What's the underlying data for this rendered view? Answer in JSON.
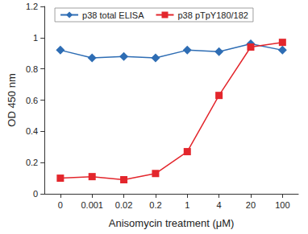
{
  "chart_data": {
    "type": "line",
    "x_label": "Anisomycin treatment (μM)",
    "y_label": "OD 450 nm",
    "categories": [
      "0",
      "0.001",
      "0.02",
      "0.2",
      "1",
      "4",
      "20",
      "100"
    ],
    "series": [
      {
        "name": "p38 total ELISA",
        "color": "#2e6db4",
        "marker": "diamond",
        "values": [
          0.92,
          0.87,
          0.88,
          0.87,
          0.92,
          0.91,
          0.96,
          0.92
        ]
      },
      {
        "name": "p38 pTpY180/182",
        "color": "#e3262c",
        "marker": "square",
        "values": [
          0.1,
          0.11,
          0.09,
          0.13,
          0.27,
          0.63,
          0.94,
          0.97
        ]
      }
    ],
    "ylim": [
      0,
      1.2
    ],
    "yticks": [
      0,
      0.2,
      0.4,
      0.6,
      0.8,
      1,
      1.2
    ],
    "grid": false,
    "legend": "top"
  }
}
